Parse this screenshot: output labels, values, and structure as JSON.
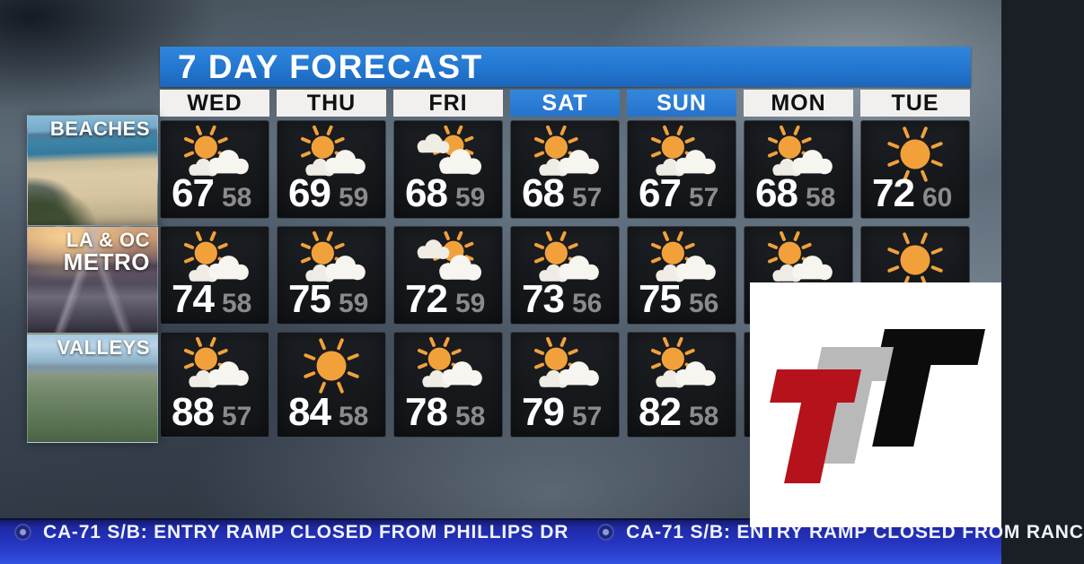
{
  "title": "7 DAY FORECAST",
  "chart_data": {
    "type": "table",
    "title": "7 DAY FORECAST",
    "columns": [
      "WED",
      "THU",
      "FRI",
      "SAT",
      "SUN",
      "MON",
      "TUE"
    ],
    "highlighted_columns": [
      "SAT",
      "SUN"
    ],
    "rows": [
      {
        "region": "BEACHES",
        "highs": [
          67,
          69,
          68,
          68,
          67,
          68,
          72
        ],
        "lows": [
          58,
          59,
          59,
          57,
          57,
          58,
          60
        ],
        "conditions": [
          "partly-sunny",
          "partly-sunny",
          "mostly-cloudy",
          "partly-sunny",
          "partly-sunny",
          "partly-sunny",
          "sunny"
        ]
      },
      {
        "region": "LA & OC METRO",
        "highs": [
          74,
          75,
          72,
          73,
          75,
          null,
          null
        ],
        "lows": [
          58,
          59,
          59,
          56,
          56,
          null,
          null
        ],
        "conditions": [
          "partly-sunny",
          "partly-sunny",
          "mostly-cloudy",
          "partly-sunny",
          "partly-sunny",
          "partly-sunny",
          "sunny"
        ]
      },
      {
        "region": "VALLEYS",
        "highs": [
          88,
          84,
          78,
          79,
          82,
          null,
          null
        ],
        "lows": [
          57,
          58,
          58,
          57,
          58,
          null,
          null
        ],
        "conditions": [
          "partly-sunny",
          "sunny",
          "partly-sunny",
          "partly-sunny",
          "partly-sunny",
          null,
          null
        ]
      }
    ]
  },
  "forecast": {
    "days": [
      {
        "label": "WED",
        "highlight": false
      },
      {
        "label": "THU",
        "highlight": false
      },
      {
        "label": "FRI",
        "highlight": false
      },
      {
        "label": "SAT",
        "highlight": true
      },
      {
        "label": "SUN",
        "highlight": true
      },
      {
        "label": "MON",
        "highlight": false
      },
      {
        "label": "TUE",
        "highlight": false
      }
    ],
    "regions": [
      {
        "id": "beaches",
        "label_lines": [
          "BEACHES"
        ],
        "photo_icon": "beach-aerial-photo",
        "cells": [
          {
            "icon": "partly-sunny",
            "high": "67",
            "low": "58"
          },
          {
            "icon": "partly-sunny",
            "high": "69",
            "low": "59"
          },
          {
            "icon": "mostly-cloudy",
            "high": "68",
            "low": "59"
          },
          {
            "icon": "partly-sunny",
            "high": "68",
            "low": "57"
          },
          {
            "icon": "partly-sunny",
            "high": "67",
            "low": "57"
          },
          {
            "icon": "partly-sunny",
            "high": "68",
            "low": "58"
          },
          {
            "icon": "sunny",
            "high": "72",
            "low": "60"
          }
        ]
      },
      {
        "id": "metro",
        "label_lines": [
          "LA & OC",
          "METRO"
        ],
        "photo_icon": "freeway-sunset-photo",
        "cells": [
          {
            "icon": "partly-sunny",
            "high": "74",
            "low": "58"
          },
          {
            "icon": "partly-sunny",
            "high": "75",
            "low": "59"
          },
          {
            "icon": "mostly-cloudy",
            "high": "72",
            "low": "59"
          },
          {
            "icon": "partly-sunny",
            "high": "73",
            "low": "56"
          },
          {
            "icon": "partly-sunny",
            "high": "75",
            "low": "56"
          },
          {
            "icon": "partly-sunny",
            "high": "",
            "low": ""
          },
          {
            "icon": "sunny",
            "high": "",
            "low": ""
          }
        ]
      },
      {
        "id": "valleys",
        "label_lines": [
          "VALLEYS"
        ],
        "photo_icon": "valley-aerial-photo",
        "cells": [
          {
            "icon": "partly-sunny",
            "high": "88",
            "low": "57"
          },
          {
            "icon": "sunny",
            "high": "84",
            "low": "58"
          },
          {
            "icon": "partly-sunny",
            "high": "78",
            "low": "58"
          },
          {
            "icon": "partly-sunny",
            "high": "79",
            "low": "57"
          },
          {
            "icon": "partly-sunny",
            "high": "82",
            "low": "58"
          },
          {
            "icon": null,
            "high": "",
            "low": ""
          },
          {
            "icon": null,
            "high": "",
            "low": ""
          }
        ]
      }
    ]
  },
  "ticker": {
    "items": [
      {
        "icon": "cbs-eye-icon",
        "text": "CA-71 S/B: ENTRY RAMP CLOSED FROM PHILLIPS DR"
      },
      {
        "icon": "cbs-eye-icon",
        "text": "CA-71 S/B: ENTRY RAMP CLOSED FROM RANC"
      }
    ]
  },
  "logo": {
    "name": "ttt-logo",
    "letters": [
      {
        "glyph": "T",
        "color": "#0c0c0c"
      },
      {
        "glyph": "T",
        "color": "#b9b9b9"
      },
      {
        "glyph": "T",
        "color": "#b5121b"
      }
    ]
  },
  "colors": {
    "banner_blue": "#2376cf",
    "weekend_header_blue": "#2b7ed6",
    "header_bg": "#f1f0ee",
    "cell_bg": "#16181b",
    "high_temp": "#ffffff",
    "low_temp": "#8b8b8b",
    "sun": "#f2a13a",
    "cloud": "#f7f5f0",
    "ticker_blue": "#2433bd",
    "logo_red": "#b5121b",
    "logo_gray": "#b9b9b9",
    "logo_black": "#0c0c0c"
  }
}
